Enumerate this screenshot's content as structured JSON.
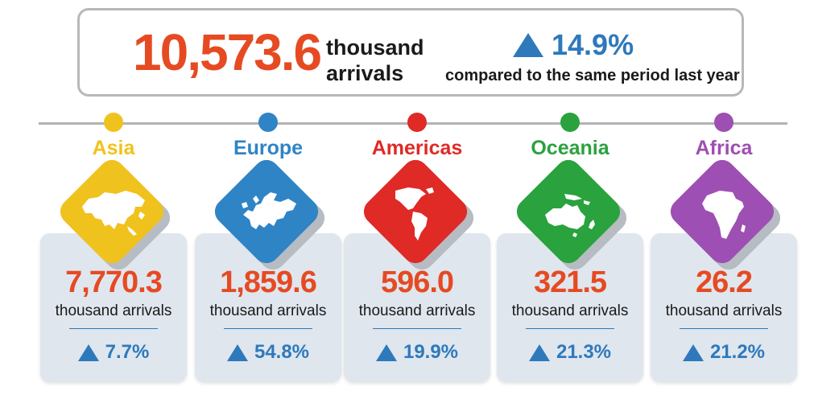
{
  "summary": {
    "total_value": "10,573.6",
    "total_unit_line1": "thousand",
    "total_unit_line2": "arrivals",
    "change_pct": "14.9%",
    "change_icon": "triangle-up-icon",
    "change_note": "compared to the same period last year"
  },
  "colors": {
    "value": "#e64a22",
    "accent": "#2e79bb"
  },
  "regions": [
    {
      "name": "Asia",
      "value": "7,770.3",
      "unit": "thousand arrivals",
      "change": "7.7%",
      "color": "#f0c21d",
      "icon": "asia-map-icon"
    },
    {
      "name": "Europe",
      "value": "1,859.6",
      "unit": "thousand arrivals",
      "change": "54.8%",
      "color": "#2f84c6",
      "icon": "europe-map-icon"
    },
    {
      "name": "Americas",
      "value": "596.0",
      "unit": "thousand arrivals",
      "change": "19.9%",
      "color": "#df2a26",
      "icon": "americas-map-icon"
    },
    {
      "name": "Oceania",
      "value": "321.5",
      "unit": "thousand arrivals",
      "change": "21.3%",
      "color": "#2aa23e",
      "icon": "oceania-map-icon"
    },
    {
      "name": "Africa",
      "value": "26.2",
      "unit": "thousand arrivals",
      "change": "21.2%",
      "color": "#9e4fb3",
      "icon": "africa-map-icon"
    }
  ]
}
